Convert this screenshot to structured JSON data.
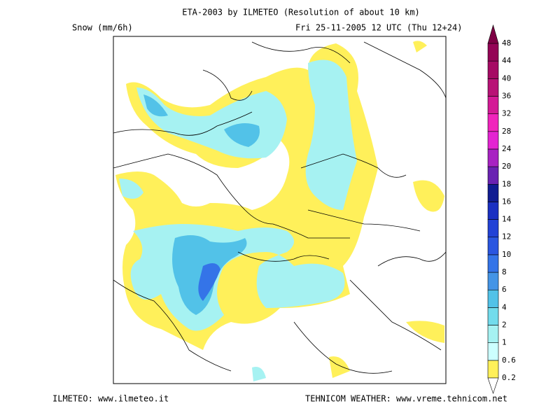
{
  "header": {
    "title": "ETA-2003 by ILMETEO (Resolution of about 10 km)",
    "variable": "Snow (mm/6h)",
    "valid_time": "Fri 25-11-2005 12 UTC (Thu 12+24)"
  },
  "footer": {
    "left": "ILMETEO: www.ilmeteo.it",
    "right": "TEHNICOM WEATHER: www.vreme.tehnicom.net"
  },
  "legend": {
    "levels": [
      0.2,
      0.6,
      1,
      2,
      4,
      6,
      8,
      10,
      12,
      14,
      16,
      18,
      20,
      24,
      28,
      32,
      36,
      40,
      44,
      48
    ],
    "colors": [
      "#fff05a",
      "#ccffff",
      "#a6f2f2",
      "#72dcec",
      "#52c2e8",
      "#4494e6",
      "#3474e8",
      "#2a56e0",
      "#2242d6",
      "#1a30c2",
      "#101c92",
      "#6a22b2",
      "#a822c2",
      "#e424d2",
      "#f024bc",
      "#d41a96",
      "#b81276",
      "#a60a64",
      "#940456",
      "#7e0044"
    ]
  }
}
